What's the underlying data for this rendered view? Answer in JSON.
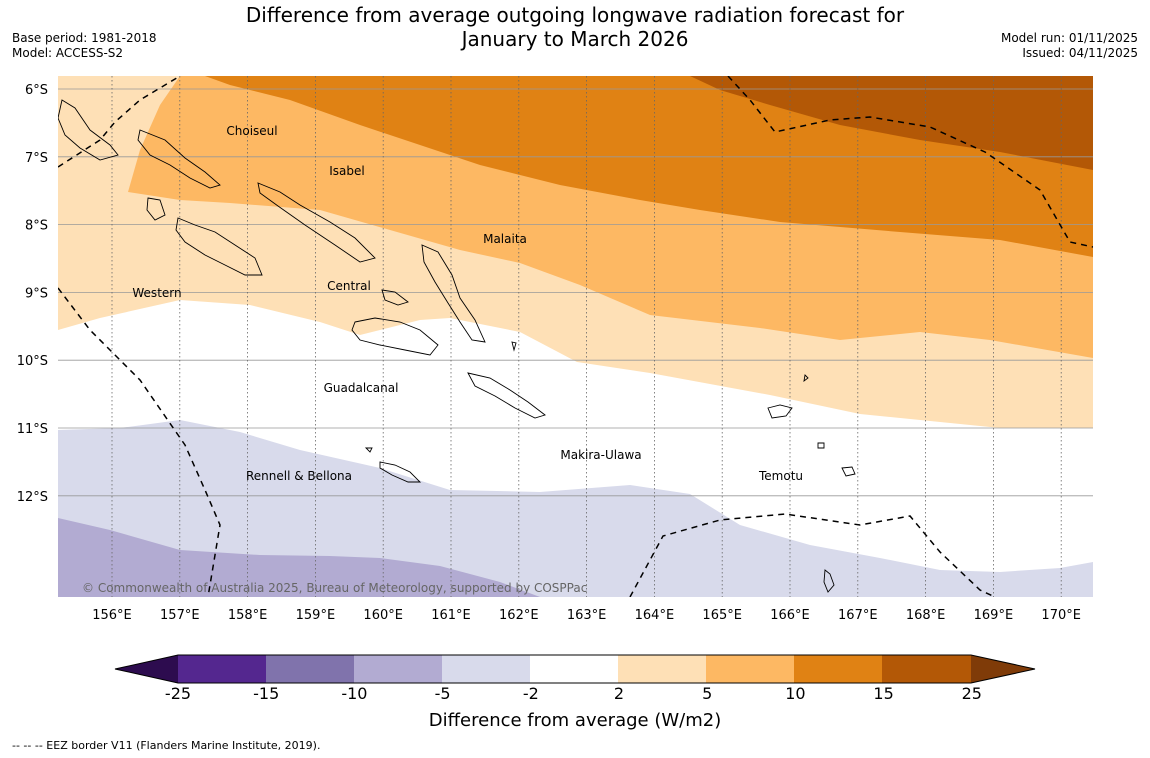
{
  "header": {
    "title_line1": "Difference from average outgoing longwave radiation forecast for",
    "title_line2": "January to March 2026",
    "base_period": "Base period: 1981-2018",
    "model": "Model: ACCESS-S2",
    "model_run": "Model run: 01/11/2025",
    "issued": "Issued: 04/11/2025"
  },
  "map": {
    "lat_labels": [
      "6°S",
      "7°S",
      "8°S",
      "9°S",
      "10°S",
      "11°S",
      "12°S"
    ],
    "lon_labels": [
      "156°E",
      "157°E",
      "158°E",
      "159°E",
      "160°E",
      "161°E",
      "162°E",
      "163°E",
      "164°E",
      "165°E",
      "166°E",
      "167°E",
      "168°E",
      "169°E",
      "170°E"
    ],
    "regions": [
      "Choiseul",
      "Isabel",
      "Malaita",
      "Western",
      "Central",
      "Guadalcanal",
      "Makira-Ulawa",
      "Temotu",
      "Rennell & Bellona"
    ],
    "copyright": "© Commonwealth of Australia 2025, Bureau of Meteorology, supported by COSPPac"
  },
  "legend": {
    "title": "Difference from average (W/m2)",
    "ticks": [
      "-25",
      "-15",
      "-10",
      "-5",
      "-2",
      "2",
      "5",
      "10",
      "15",
      "25"
    ],
    "colors": {
      "below_-25": "#2d0c4f",
      "-25_-15": "#54278f",
      "-15_-10": "#8073ac",
      "-10_-5": "#b2abd2",
      "-5_-2": "#d8daeb",
      "-2_2": "#ffffff",
      "2_5": "#fee0b6",
      "5_10": "#fdb863",
      "10_15": "#e08214",
      "15_25": "#b35806",
      "above_25": "#7f3b08"
    }
  },
  "footnote": "--  --  -- EEZ border V11 (Flanders Marine Institute, 2019)."
}
